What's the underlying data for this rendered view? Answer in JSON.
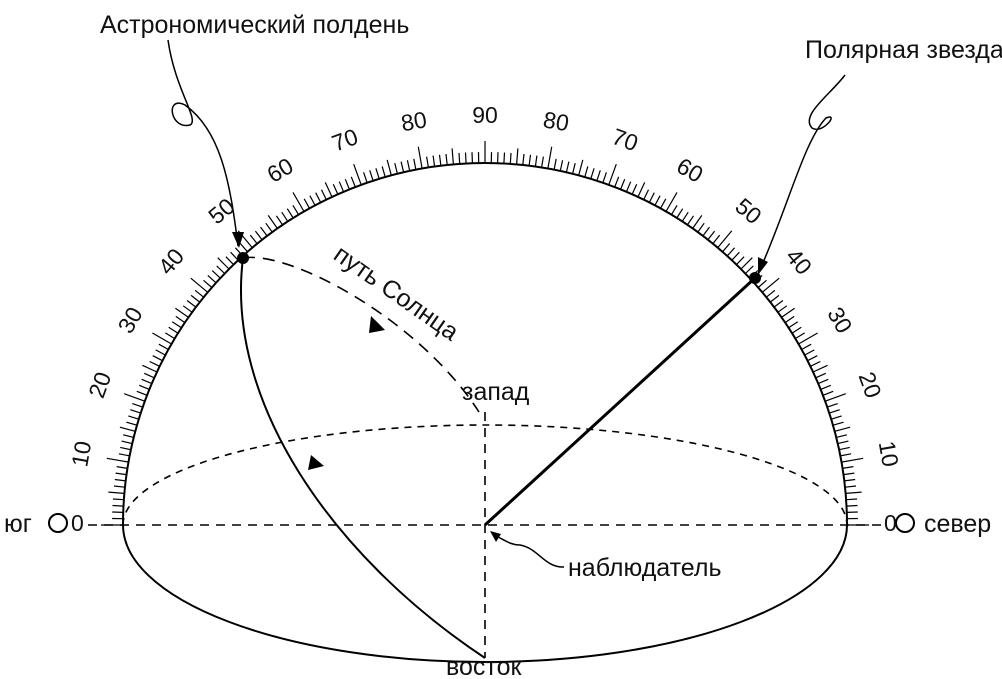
{
  "labels": {
    "noon": "Астрономический полдень",
    "polaris": "Полярная звезда",
    "sun_path": "путь Солнца",
    "west": "запад",
    "east": "восток",
    "south": "юг",
    "north": "север",
    "observer": "наблюдатель",
    "zero_left": "0",
    "zero_right": "0"
  },
  "scale": {
    "left_labels": [
      "10",
      "20",
      "30",
      "40",
      "50",
      "60",
      "70",
      "80"
    ],
    "top_label": "90",
    "right_labels": [
      "80",
      "70",
      "60",
      "50",
      "40",
      "30",
      "20",
      "10"
    ]
  },
  "markers": {
    "noon_altitude_deg": 48,
    "polaris_altitude_deg": 42
  }
}
